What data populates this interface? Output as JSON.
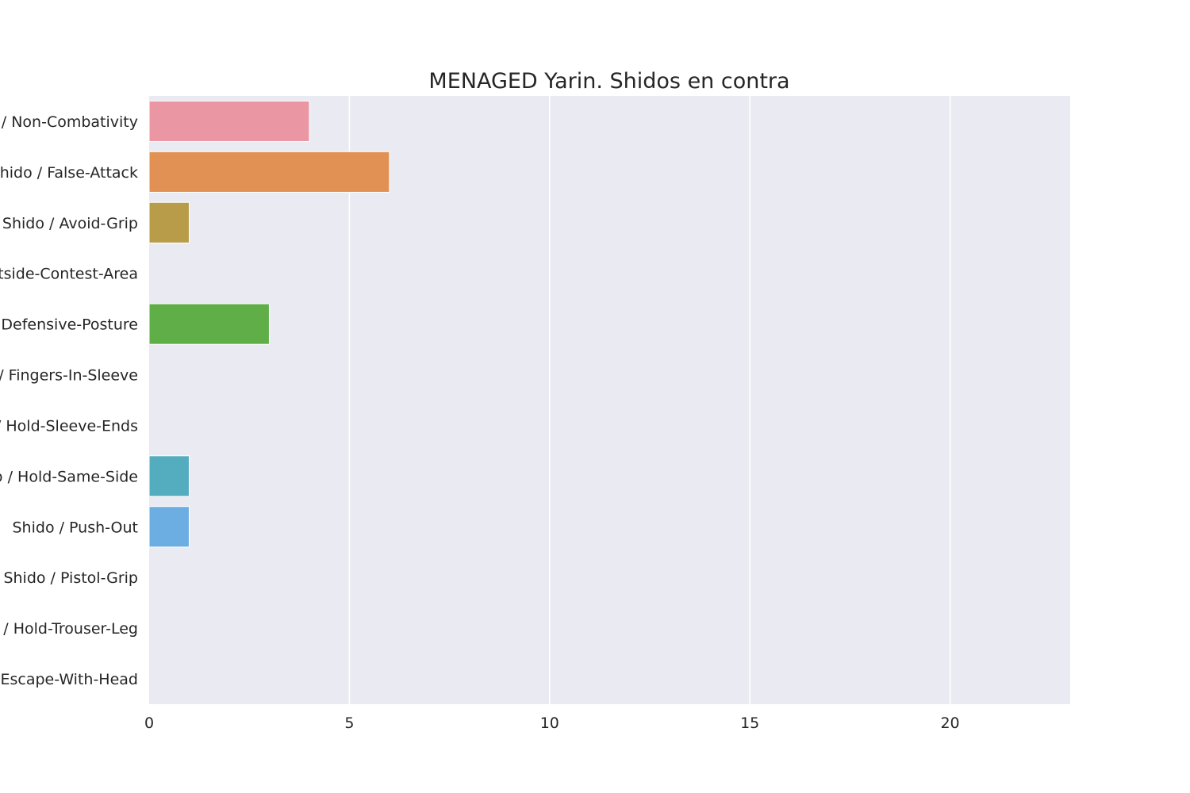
{
  "chart_data": {
    "type": "bar",
    "orientation": "horizontal",
    "title": "MENAGED Yarin. Shidos en contra",
    "xlabel": "",
    "ylabel": "",
    "xlim": [
      0,
      23
    ],
    "x_ticks": [
      0,
      5,
      10,
      15,
      20
    ],
    "grid": true,
    "categories": [
      "Shido / Non-Combativity",
      "Shido / False-Attack",
      "Shido / Avoid-Grip",
      "Shido / Outside-Contest-Area",
      "Shido / Defensive-Posture",
      "Shido / Fingers-In-Sleeve",
      "Shido / Hold-Sleeve-Ends",
      "Shido / Hold-Same-Side",
      "Shido / Push-Out",
      "Shido / Pistol-Grip",
      "Shido / Hold-Trouser-Leg",
      "Shido / Escape-With-Head"
    ],
    "values": [
      4,
      6,
      1,
      0,
      3,
      0,
      0,
      1,
      1,
      0,
      0,
      0
    ],
    "colors": [
      "#ea96a3",
      "#e19153",
      "#b89c49",
      "#9ba33c",
      "#5fae47",
      "#53ac8c",
      "#55aaa4",
      "#53adbe",
      "#6daee2",
      "#ad9ff0",
      "#e28be7",
      "#e990c6"
    ],
    "plot_background": "#eaeaf2",
    "grid_color": "#ffffff"
  }
}
